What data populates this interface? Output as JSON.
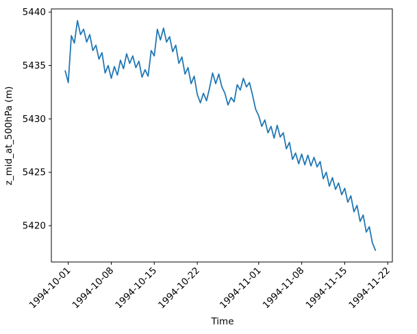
{
  "figure": {
    "background": "#ffffff"
  },
  "chart_data": {
    "type": "line",
    "title": "",
    "xlabel": "Time",
    "ylabel": "z_mid_at_500hPa (m)",
    "legend": null,
    "grid": false,
    "line_color": "#1f77b4",
    "line_width": 1.8,
    "axis_color": "#000000",
    "x_unit": "days since 1994-10-01 00:00",
    "x_start_day": -0.5,
    "x_step_day": 0.5,
    "xlim": [
      -2.75,
      52.75
    ],
    "ylim": [
      5416.6,
      5440.3
    ],
    "x_ticks": [
      {
        "label": "1994-10-01",
        "day": 0
      },
      {
        "label": "1994-10-08",
        "day": 7
      },
      {
        "label": "1994-10-15",
        "day": 14
      },
      {
        "label": "1994-10-22",
        "day": 21
      },
      {
        "label": "1994-11-01",
        "day": 31
      },
      {
        "label": "1994-11-08",
        "day": 38
      },
      {
        "label": "1994-11-15",
        "day": 45
      },
      {
        "label": "1994-11-22",
        "day": 52
      }
    ],
    "y_ticks": [
      5420,
      5425,
      5430,
      5435,
      5440
    ],
    "values": [
      5434.5,
      5433.4,
      5437.8,
      5437.1,
      5439.2,
      5437.9,
      5438.4,
      5437.2,
      5437.9,
      5436.4,
      5436.9,
      5435.6,
      5436.2,
      5434.3,
      5435.0,
      5433.8,
      5434.9,
      5434.1,
      5435.5,
      5434.7,
      5436.1,
      5435.2,
      5435.9,
      5434.8,
      5435.4,
      5433.9,
      5434.6,
      5434.0,
      5436.4,
      5435.9,
      5438.4,
      5437.4,
      5438.5,
      5437.2,
      5437.7,
      5436.3,
      5436.9,
      5435.2,
      5435.8,
      5434.2,
      5434.8,
      5433.3,
      5434.0,
      5432.3,
      5431.5,
      5432.4,
      5431.7,
      5432.9,
      5434.3,
      5433.3,
      5434.2,
      5433.0,
      5432.4,
      5431.3,
      5432.0,
      5431.6,
      5433.2,
      5432.7,
      5433.8,
      5433.0,
      5433.4,
      5432.2,
      5430.9,
      5430.3,
      5429.3,
      5429.9,
      5428.7,
      5429.3,
      5428.2,
      5429.4,
      5428.3,
      5428.7,
      5427.2,
      5427.8,
      5426.2,
      5426.8,
      5425.8,
      5426.7,
      5425.7,
      5426.6,
      5425.6,
      5426.4,
      5425.5,
      5426.0,
      5424.4,
      5425.0,
      5423.7,
      5424.5,
      5423.4,
      5424.0,
      5422.9,
      5423.5,
      5422.2,
      5422.8,
      5421.3,
      5421.9,
      5420.4,
      5421.0,
      5419.4,
      5419.9,
      5418.4,
      5417.7
    ]
  }
}
